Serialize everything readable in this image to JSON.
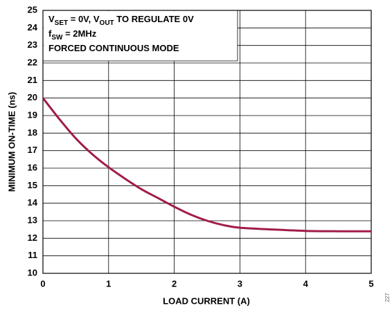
{
  "chart_data": {
    "type": "line",
    "xlabel": "LOAD CURRENT (A)",
    "ylabel": "MINIMUM ON-TIME (ns)",
    "annotations": [
      [
        {
          "text": "V"
        },
        {
          "text": "SET",
          "sub": true
        },
        {
          "text": " = 0V, V"
        },
        {
          "text": "OUT",
          "sub": true
        },
        {
          "text": " TO REGULATE 0V"
        }
      ],
      [
        {
          "text": "f"
        },
        {
          "text": "SW",
          "sub": true
        },
        {
          "text": " = 2MHz"
        }
      ],
      [
        {
          "text": "FORCED CONTINUOUS MODE"
        }
      ]
    ],
    "figure_id": "227",
    "x": [
      0,
      0.25,
      0.5,
      0.75,
      1,
      1.25,
      1.5,
      1.75,
      2,
      2.25,
      2.5,
      2.75,
      3,
      3.5,
      4,
      4.5,
      5
    ],
    "series": [
      {
        "color": "#a01c48",
        "values": [
          20,
          18.8,
          17.7,
          16.8,
          16.05,
          15.4,
          14.8,
          14.3,
          13.8,
          13.35,
          13.0,
          12.75,
          12.6,
          12.5,
          12.42,
          12.4,
          12.4
        ]
      }
    ],
    "xlim": [
      0,
      5
    ],
    "xticks": [
      0,
      1,
      2,
      3,
      4,
      5
    ],
    "ylim": [
      10,
      25
    ],
    "yticks": [
      10,
      11,
      12,
      13,
      14,
      15,
      16,
      17,
      18,
      19,
      20,
      21,
      22,
      23,
      24,
      25
    ],
    "grid": true
  }
}
